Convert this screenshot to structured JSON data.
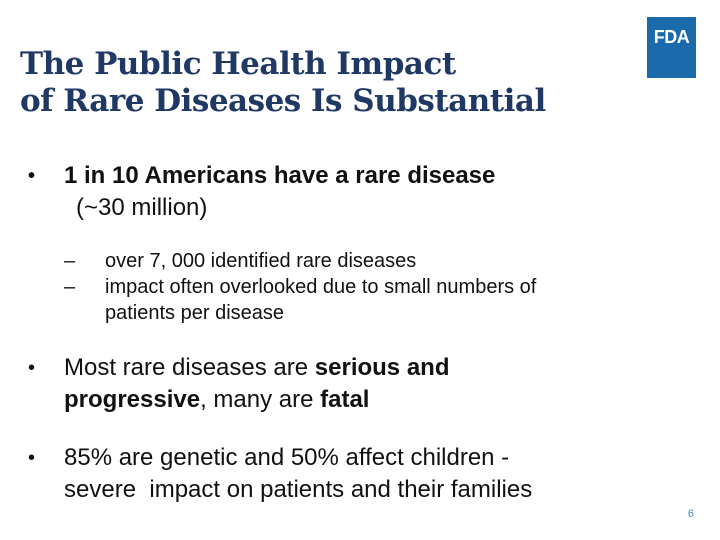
{
  "slide": {
    "title_line1": "The Public Health Impact",
    "title_line2": "of Rare Diseases Is Substantial",
    "logo_text": "FDA",
    "page_number": "6"
  },
  "bullets": {
    "b1": {
      "line1": "1 in 10 Americans have a rare disease",
      "line2": "(~30 million)",
      "subs": [
        "over 7, 000 identified rare diseases",
        "impact often overlooked due to small numbers of",
        "patients per disease"
      ]
    },
    "b2": {
      "part1": "Most rare diseases are ",
      "bold1": "serious and",
      "bold2": "progressive",
      "part2": ", many are ",
      "bold3": "fatal"
    },
    "b3": {
      "line1": "85% are genetic and 50% affect children -",
      "line2": "severe  impact on patients and their families"
    }
  },
  "colors": {
    "title": "#1f3864",
    "logo_bg": "#1b6aab",
    "page_number": "#4a86c5"
  }
}
